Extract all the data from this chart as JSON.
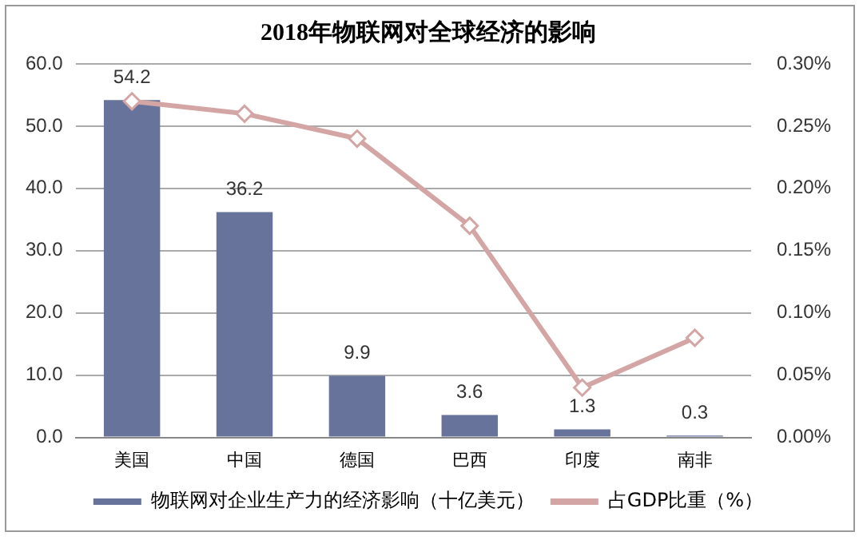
{
  "chart_data": {
    "type": "bar",
    "title": "2018年物联网对全球经济的影响",
    "categories": [
      "美国",
      "中国",
      "德国",
      "巴西",
      "印度",
      "南非"
    ],
    "series": [
      {
        "name": "物联网对企业生产力的经济影响（十亿美元）",
        "color": "#67739a",
        "values": [
          54.2,
          36.2,
          9.9,
          3.6,
          1.3,
          0.3
        ],
        "value_labels": [
          "54.2",
          "36.2",
          "9.9",
          "3.6",
          "1.3",
          "0.3"
        ]
      },
      {
        "name": "占GDP比重（%）",
        "type": "line",
        "axis": "y2",
        "color": "#d4a5a5",
        "marker": "diamond",
        "values": [
          0.27,
          0.26,
          0.24,
          0.17,
          0.04,
          0.08
        ]
      }
    ],
    "ylim": [
      0,
      60
    ],
    "yticks": [
      {
        "value": 0,
        "label": "0.0"
      },
      {
        "value": 10,
        "label": "10.0"
      },
      {
        "value": 20,
        "label": "20.0"
      },
      {
        "value": 30,
        "label": "30.0"
      },
      {
        "value": 40,
        "label": "40.0"
      },
      {
        "value": 50,
        "label": "50.0"
      },
      {
        "value": 60,
        "label": "60.0"
      }
    ],
    "y2lim": [
      0,
      0.3
    ],
    "y2ticks": [
      {
        "value": 0,
        "label": "0.00%"
      },
      {
        "value": 0.05,
        "label": "0.05%"
      },
      {
        "value": 0.1,
        "label": "0.10%"
      },
      {
        "value": 0.15,
        "label": "0.15%"
      },
      {
        "value": 0.2,
        "label": "0.20%"
      },
      {
        "value": 0.25,
        "label": "0.25%"
      },
      {
        "value": 0.3,
        "label": "0.30%"
      }
    ],
    "grid": "y",
    "legend": "bottom"
  }
}
